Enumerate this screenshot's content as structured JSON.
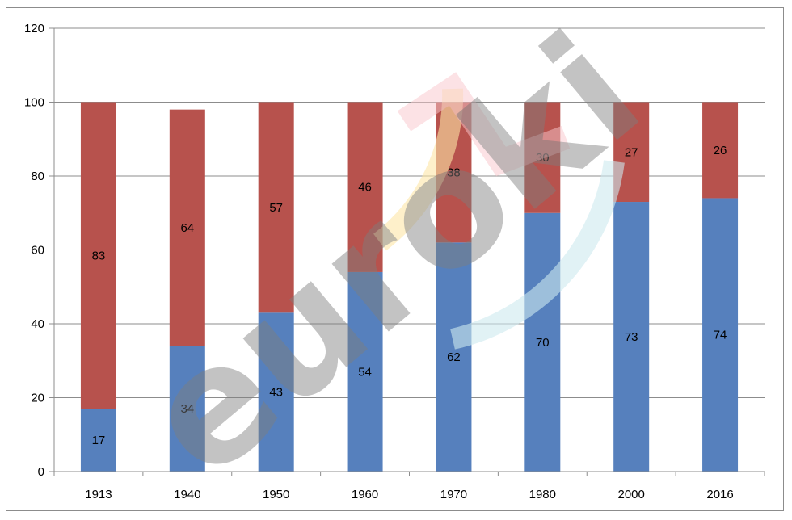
{
  "watermark": {
    "text": "euroki"
  },
  "chart_data": {
    "type": "bar",
    "stacked": true,
    "title": "",
    "xlabel": "",
    "ylabel": "",
    "categories": [
      "1913",
      "1940",
      "1950",
      "1960",
      "1970",
      "1980",
      "2000",
      "2016"
    ],
    "series": [
      {
        "values": [
          17,
          34,
          43,
          54,
          62,
          70,
          73,
          74
        ],
        "color": "#5680bd"
      },
      {
        "values": [
          83,
          64,
          57,
          46,
          38,
          30,
          27,
          26
        ],
        "color": "#b7524d"
      }
    ],
    "ylim": [
      0,
      120
    ],
    "yticks": [
      0,
      20,
      40,
      60,
      80,
      100,
      120
    ],
    "grid": true,
    "legend": "none"
  }
}
